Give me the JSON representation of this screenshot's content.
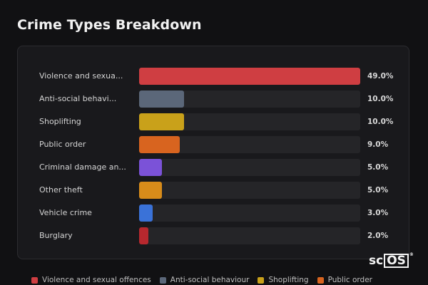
{
  "header": {
    "title": "Crime Types Breakdown"
  },
  "chart_data": {
    "type": "bar",
    "orientation": "horizontal",
    "categories": [
      "Violence and sexua...",
      "Anti-social behavi...",
      "Shoplifting",
      "Public order",
      "Criminal damage an...",
      "Other theft",
      "Vehicle crime",
      "Burglary"
    ],
    "values": [
      49.0,
      10.0,
      10.0,
      9.0,
      5.0,
      5.0,
      3.0,
      2.0
    ],
    "value_labels": [
      "49.0%",
      "10.0%",
      "10.0%",
      "9.0%",
      "5.0%",
      "5.0%",
      "3.0%",
      "2.0%"
    ],
    "colors": [
      "#cf3e42",
      "#5b6779",
      "#c9a11a",
      "#d8641f",
      "#7b52d8",
      "#d88c1a",
      "#3a72d8",
      "#b7282e"
    ],
    "xlim": [
      0,
      49
    ],
    "grid": false,
    "legend": "bottom"
  },
  "legend": {
    "items": [
      {
        "label": "Violence and sexual offences",
        "color": "#cf3e42"
      },
      {
        "label": "Anti-social behaviour",
        "color": "#5b6779"
      },
      {
        "label": "Shoplifting",
        "color": "#c9a11a"
      },
      {
        "label": "Public order",
        "color": "#d8641f"
      }
    ]
  },
  "logo": {
    "text_a": "sc",
    "text_b": "OS",
    "mark": "®"
  }
}
